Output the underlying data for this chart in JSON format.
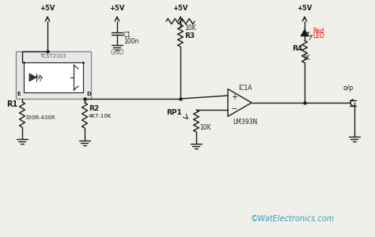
{
  "bg_color": "#f0f0eb",
  "line_color": "#1a1a1a",
  "text_color": "#1a1a1a",
  "watermark": "©WatElectronics.com",
  "watermark_color": "#3399bb",
  "components": {
    "tcst_label": "TCST2103",
    "c1_label": "C1",
    "c1_value": "100n",
    "gnd_label": "GND",
    "r3_label": "R3",
    "r3_value": "10K",
    "r4_label": "R4",
    "r4_value": "1K",
    "r1_label": "R1",
    "r1_value": "330R-430R",
    "r2_label": "R2",
    "r2_value": "4K7-10K",
    "rp1_label": "RP1",
    "rp1_value": "10K",
    "ic_label": "IC1A",
    "ic_sublabel": "LM393N",
    "led_color": "red",
    "led_label": "Red",
    "led_label2": "LED",
    "op_label": "o/p",
    "vcc": "+5V"
  }
}
